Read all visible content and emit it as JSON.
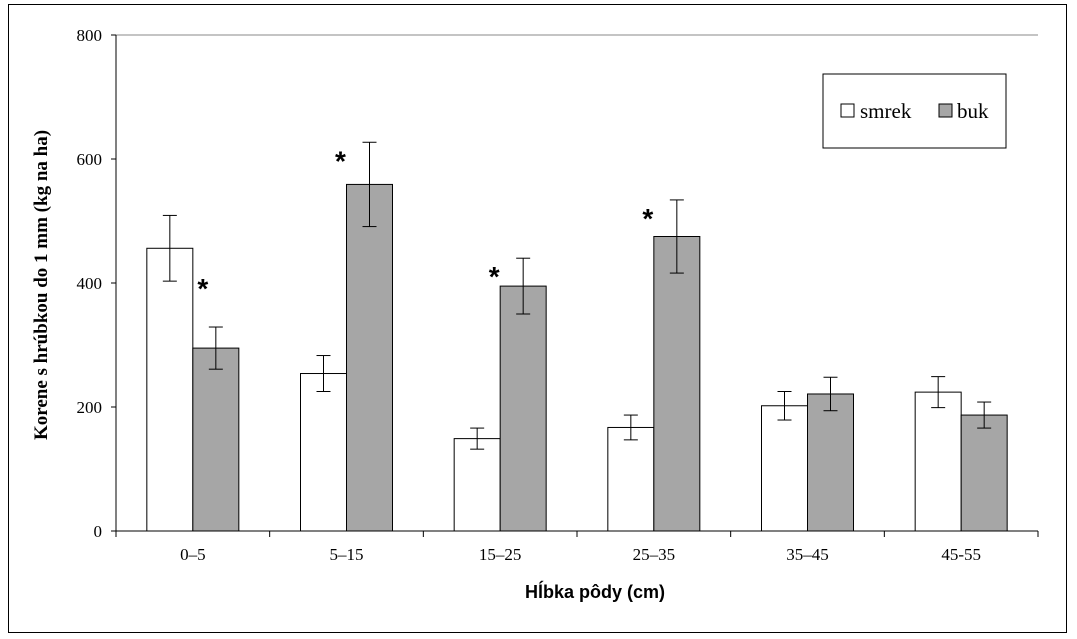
{
  "chart_data": {
    "type": "bar",
    "categories": [
      "0–5",
      "5–15",
      "15–25",
      "25–35",
      "35–45",
      "45-55"
    ],
    "series": [
      {
        "name": "smrek",
        "values": [
          456,
          254,
          149,
          167,
          202,
          224
        ],
        "error": [
          53,
          29,
          17,
          20,
          23,
          25
        ],
        "color": "#ffffff"
      },
      {
        "name": "buk",
        "values": [
          295,
          559,
          395,
          475,
          221,
          187
        ],
        "error": [
          34,
          68,
          45,
          59,
          27,
          21
        ],
        "color": "#a6a6a6"
      }
    ],
    "significance": [
      {
        "category_index": 0,
        "mark": "*"
      },
      {
        "category_index": 1,
        "mark": "*"
      },
      {
        "category_index": 2,
        "mark": "*"
      },
      {
        "category_index": 3,
        "mark": "*"
      }
    ],
    "title": "",
    "xlabel": "Hĺbka pôdy (cm)",
    "ylabel": "Korene s hrúbkou do 1 mm (kg na ha)",
    "ylim": [
      0,
      800
    ],
    "yticks": [
      "0",
      "200",
      "400",
      "600",
      "800"
    ],
    "grid": false,
    "legend_position": "top-right"
  }
}
